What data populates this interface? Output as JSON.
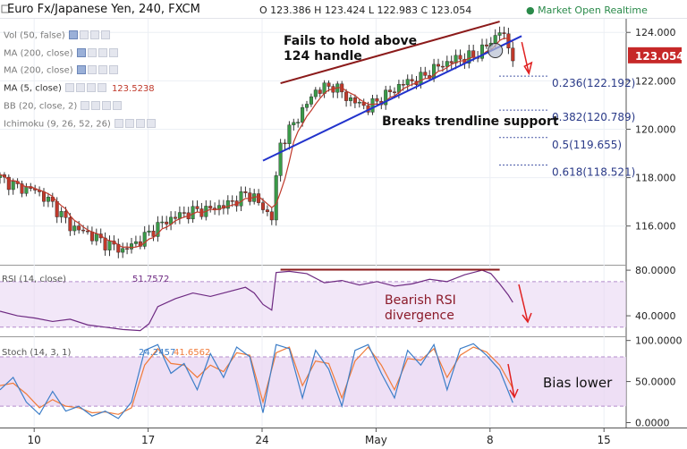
{
  "header": {
    "symbol": "Euro Fx/Japanese Yen, 240, FXCM",
    "open": "O 123.386",
    "high": "H 123.424",
    "low": "L 122.983",
    "close": "C 123.054",
    "status": "Market Open",
    "realtime": "Realtime"
  },
  "indicators": [
    {
      "name": "Vol (50, false)",
      "value": ""
    },
    {
      "name": "MA (200, close)",
      "value": ""
    },
    {
      "name": "MA (200, close)",
      "value": ""
    },
    {
      "name": "MA (5, close)",
      "value": "123.5238"
    },
    {
      "name": "BB (20, close, 2)",
      "value": ""
    },
    {
      "name": "Ichimoku (9, 26, 52, 26)",
      "value": ""
    }
  ],
  "colors": {
    "up": "#3a9a48",
    "down": "#c0392b",
    "ma": "#c0392b",
    "trend": "#2233cc",
    "resistance": "#8b1a1a",
    "arrow": "#e02020",
    "rsi": "#6e2a82",
    "stoch_k": "#3d7ec8",
    "stoch_d": "#f07b3a",
    "band": "#e8d4f2",
    "fib": "#4a5aa8"
  },
  "chart_data": [
    {
      "type": "candlestick",
      "x_ticks": [
        "10",
        "17",
        "24",
        "May",
        "8",
        "15"
      ],
      "y_ticks": [
        "124.000",
        "122.000",
        "120.000",
        "118.000",
        "116.000"
      ],
      "ylim": [
        114.4,
        124.6
      ],
      "last_price": "123.054",
      "ma_label": "MA (5, close)",
      "path": [
        [
          0,
          118.0
        ],
        [
          4,
          117.6
        ],
        [
          8,
          117.5
        ],
        [
          12,
          116.9
        ],
        [
          16,
          116.0
        ],
        [
          20,
          115.7
        ],
        [
          24,
          115.3
        ],
        [
          28,
          115.0
        ],
        [
          32,
          115.4
        ],
        [
          36,
          116.0
        ],
        [
          40,
          116.4
        ],
        [
          44,
          116.6
        ],
        [
          48,
          116.7
        ],
        [
          52,
          116.9
        ],
        [
          56,
          117.3
        ],
        [
          58,
          117.2
        ],
        [
          60,
          116.7
        ],
        [
          62,
          116.4
        ],
        [
          64,
          119.4
        ],
        [
          68,
          120.5
        ],
        [
          72,
          121.6
        ],
        [
          76,
          121.8
        ],
        [
          80,
          121.2
        ],
        [
          84,
          120.9
        ],
        [
          88,
          121.4
        ],
        [
          92,
          121.9
        ],
        [
          96,
          122.1
        ],
        [
          100,
          122.6
        ],
        [
          104,
          122.9
        ],
        [
          108,
          123.0
        ],
        [
          112,
          123.6
        ],
        [
          114,
          124.1
        ],
        [
          116,
          123.4
        ],
        [
          117,
          123.05
        ]
      ],
      "annotations": [
        {
          "text": "Fails to hold above",
          "text2": "124 handle"
        },
        {
          "text": "Breaks trendline support"
        }
      ],
      "fib_levels": [
        {
          "label": "0.236(122.192)",
          "value": 122.192
        },
        {
          "label": "0.382(120.789)",
          "value": 120.789
        },
        {
          "label": "0.5(119.655)",
          "value": 119.655
        },
        {
          "label": "0.618(118.521)",
          "value": 118.521
        }
      ]
    },
    {
      "type": "line",
      "name": "RSI (14, close)",
      "value_label": "51.7572",
      "y_ticks": [
        "80.0000",
        "40.0000"
      ],
      "ylim": [
        22,
        84
      ],
      "band": [
        30,
        70
      ],
      "values": [
        [
          0,
          44
        ],
        [
          4,
          40
        ],
        [
          8,
          38
        ],
        [
          12,
          35
        ],
        [
          16,
          37
        ],
        [
          20,
          32
        ],
        [
          24,
          30
        ],
        [
          28,
          28
        ],
        [
          32,
          27
        ],
        [
          34,
          33
        ],
        [
          36,
          48
        ],
        [
          40,
          55
        ],
        [
          44,
          60
        ],
        [
          48,
          57
        ],
        [
          52,
          61
        ],
        [
          56,
          65
        ],
        [
          58,
          60
        ],
        [
          60,
          50
        ],
        [
          62,
          45
        ],
        [
          63,
          78
        ],
        [
          66,
          79
        ],
        [
          70,
          77
        ],
        [
          74,
          69
        ],
        [
          78,
          71
        ],
        [
          82,
          67
        ],
        [
          86,
          70
        ],
        [
          90,
          66
        ],
        [
          94,
          68
        ],
        [
          98,
          72
        ],
        [
          102,
          70
        ],
        [
          106,
          76
        ],
        [
          110,
          80
        ],
        [
          112,
          77
        ],
        [
          114,
          68
        ],
        [
          116,
          58
        ],
        [
          117,
          51.8
        ]
      ],
      "annotation": "Bearish RSI",
      "annotation2": "divergence"
    },
    {
      "type": "line",
      "name": "Stoch (14, 3, 1)",
      "k_label": "24.2457",
      "d_label": "41.6562",
      "y_ticks": [
        "100.0000",
        "50.0000",
        "0.0000"
      ],
      "ylim": [
        -6,
        104
      ],
      "band": [
        20,
        80
      ],
      "k": [
        [
          0,
          40
        ],
        [
          3,
          55
        ],
        [
          6,
          25
        ],
        [
          9,
          10
        ],
        [
          12,
          38
        ],
        [
          15,
          14
        ],
        [
          18,
          20
        ],
        [
          21,
          8
        ],
        [
          24,
          14
        ],
        [
          27,
          5
        ],
        [
          30,
          25
        ],
        [
          33,
          88
        ],
        [
          36,
          95
        ],
        [
          39,
          60
        ],
        [
          42,
          72
        ],
        [
          45,
          40
        ],
        [
          48,
          84
        ],
        [
          51,
          55
        ],
        [
          54,
          92
        ],
        [
          57,
          80
        ],
        [
          60,
          12
        ],
        [
          63,
          95
        ],
        [
          66,
          90
        ],
        [
          69,
          30
        ],
        [
          72,
          88
        ],
        [
          75,
          65
        ],
        [
          78,
          20
        ],
        [
          81,
          88
        ],
        [
          84,
          95
        ],
        [
          87,
          60
        ],
        [
          90,
          30
        ],
        [
          93,
          88
        ],
        [
          96,
          70
        ],
        [
          99,
          95
        ],
        [
          102,
          40
        ],
        [
          105,
          90
        ],
        [
          108,
          96
        ],
        [
          111,
          82
        ],
        [
          114,
          64
        ],
        [
          117,
          24.2
        ]
      ],
      "d": [
        [
          0,
          45
        ],
        [
          3,
          48
        ],
        [
          6,
          35
        ],
        [
          9,
          18
        ],
        [
          12,
          28
        ],
        [
          15,
          20
        ],
        [
          18,
          18
        ],
        [
          21,
          12
        ],
        [
          24,
          13
        ],
        [
          27,
          10
        ],
        [
          30,
          18
        ],
        [
          33,
          70
        ],
        [
          36,
          90
        ],
        [
          39,
          72
        ],
        [
          42,
          70
        ],
        [
          45,
          55
        ],
        [
          48,
          70
        ],
        [
          51,
          62
        ],
        [
          54,
          85
        ],
        [
          57,
          82
        ],
        [
          60,
          25
        ],
        [
          63,
          85
        ],
        [
          66,
          92
        ],
        [
          69,
          45
        ],
        [
          72,
          75
        ],
        [
          75,
          72
        ],
        [
          78,
          30
        ],
        [
          81,
          75
        ],
        [
          84,
          92
        ],
        [
          87,
          70
        ],
        [
          90,
          40
        ],
        [
          93,
          78
        ],
        [
          96,
          76
        ],
        [
          99,
          90
        ],
        [
          102,
          55
        ],
        [
          105,
          82
        ],
        [
          108,
          92
        ],
        [
          111,
          86
        ],
        [
          114,
          70
        ],
        [
          117,
          41.7
        ]
      ],
      "annotation": "Bias lower"
    }
  ]
}
